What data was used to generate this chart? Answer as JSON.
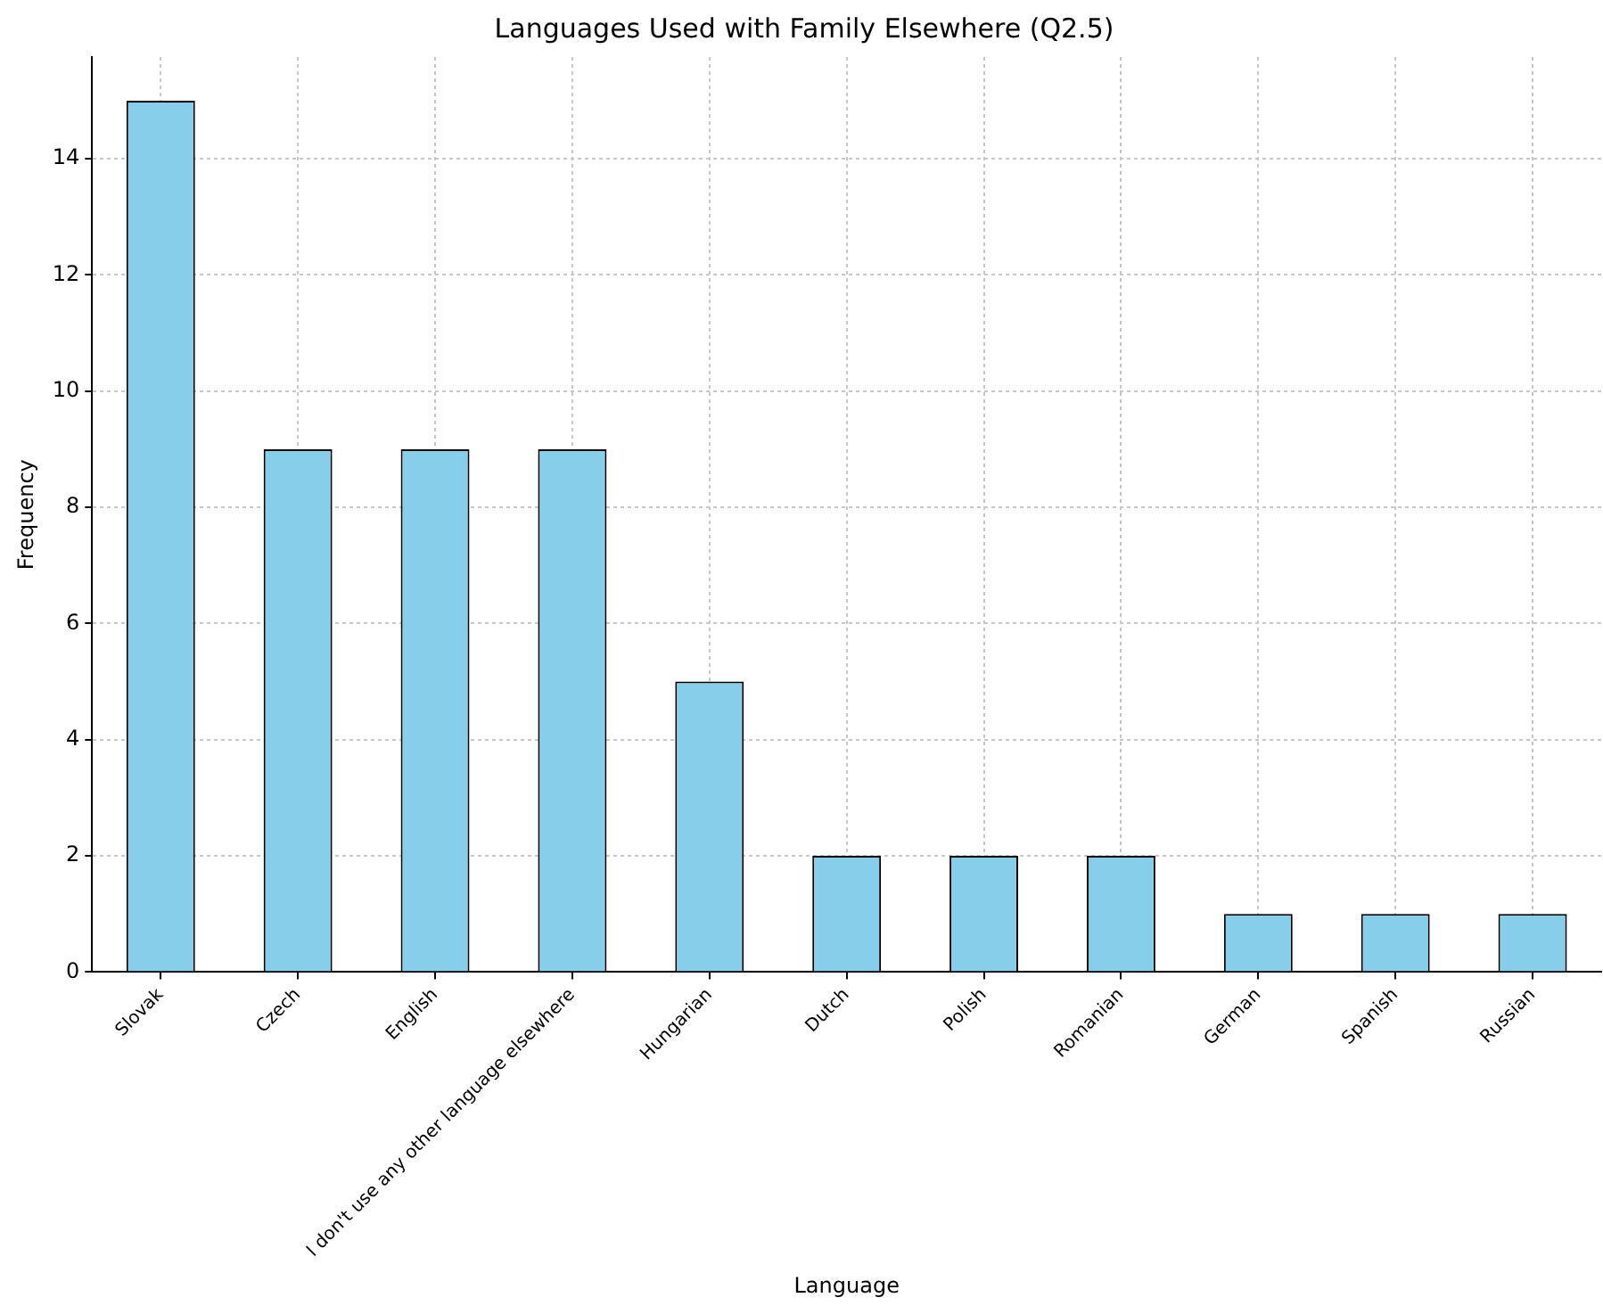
{
  "chart_data": {
    "type": "bar",
    "title": "Languages Used with Family Elsewhere (Q2.5)",
    "xlabel": "Language",
    "ylabel": "Frequency",
    "categories": [
      "Slovak",
      "Czech",
      "English",
      "I don't use any other language elsewhere",
      "Hungarian",
      "Dutch",
      "Polish",
      "Romanian",
      "German",
      "Spanish",
      "Russian"
    ],
    "values": [
      15,
      9,
      9,
      9,
      5,
      2,
      2,
      2,
      1,
      1,
      1
    ],
    "color": "#87ceeb",
    "ylim": [
      0,
      15.75
    ],
    "yticks": [
      0,
      2,
      4,
      6,
      8,
      10,
      12,
      14
    ],
    "grid": true
  }
}
